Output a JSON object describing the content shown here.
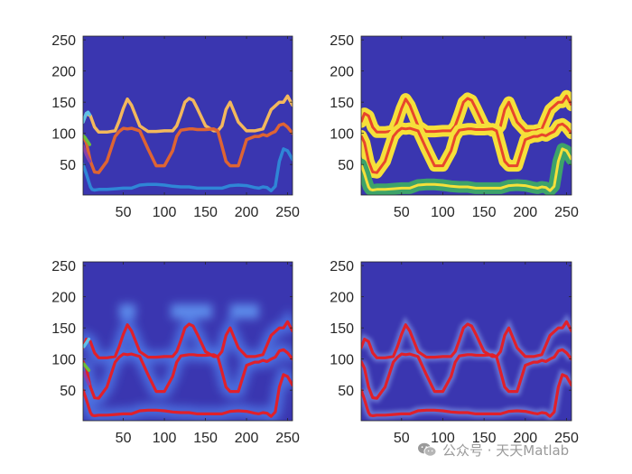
{
  "chart_data": [
    {
      "type": "heatmap",
      "panel": "top-left",
      "xlim": [
        1,
        256
      ],
      "ylim": [
        1,
        256
      ],
      "xticks": [
        50,
        100,
        150,
        200,
        250
      ],
      "yticks": [
        50,
        100,
        150,
        200,
        250
      ],
      "x_tick_labels": [
        "50",
        "100",
        "150",
        "200",
        "250"
      ],
      "y_tick_labels": [
        "50",
        "100",
        "150",
        "200",
        "250"
      ],
      "background_color": "#3a36b0",
      "series": [
        {
          "color": "#f3b85c",
          "x": [
            1,
            5,
            10,
            15,
            20,
            30,
            40,
            45,
            50,
            55,
            60,
            70,
            80,
            90,
            100,
            110,
            115,
            120,
            125,
            130,
            135,
            140,
            150,
            160,
            165,
            170,
            175,
            180,
            190,
            200,
            210,
            220,
            230,
            240,
            245,
            250,
            256
          ],
          "y": [
            118,
            132,
            128,
            110,
            102,
            102,
            104,
            120,
            140,
            155,
            145,
            112,
            103,
            103,
            104,
            104,
            112,
            130,
            150,
            156,
            153,
            140,
            112,
            104,
            104,
            112,
            138,
            150,
            118,
            104,
            104,
            107,
            138,
            150,
            150,
            160,
            145
          ]
        },
        {
          "color": "#de6433",
          "x": [
            1,
            5,
            10,
            15,
            20,
            30,
            40,
            45,
            50,
            55,
            60,
            70,
            80,
            90,
            100,
            110,
            115,
            120,
            125,
            130,
            135,
            140,
            150,
            160,
            165,
            170,
            175,
            180,
            190,
            200,
            210,
            215,
            220,
            225,
            230,
            235,
            240,
            245,
            250,
            256
          ],
          "y": [
            96,
            85,
            55,
            38,
            37,
            55,
            95,
            103,
            108,
            107,
            108,
            104,
            75,
            48,
            48,
            72,
            95,
            105,
            106,
            107,
            107,
            106,
            106,
            107,
            104,
            80,
            55,
            48,
            48,
            90,
            95,
            95,
            98,
            96,
            100,
            103,
            113,
            115,
            110,
            100
          ]
        },
        {
          "color": "#2f86d6",
          "x": [
            1,
            5,
            8,
            10,
            12,
            15,
            20,
            30,
            40,
            50,
            60,
            70,
            80,
            90,
            100,
            110,
            120,
            130,
            140,
            150,
            160,
            170,
            180,
            190,
            200,
            210,
            215,
            220,
            225,
            230,
            235,
            240,
            245,
            250,
            256
          ],
          "y": [
            50,
            35,
            22,
            14,
            10,
            9,
            10,
            10,
            11,
            12,
            12,
            17,
            18,
            18,
            17,
            15,
            14,
            14,
            12,
            12,
            12,
            12,
            16,
            17,
            16,
            13,
            12,
            14,
            13,
            8,
            15,
            55,
            75,
            72,
            58
          ]
        },
        {
          "color": "#5fc0e8",
          "x": [
            1,
            3,
            5,
            7,
            9
          ],
          "y": [
            118,
            125,
            132,
            134,
            130
          ]
        },
        {
          "color": "#6cbf3a",
          "x": [
            1,
            3,
            5,
            7,
            9
          ],
          "y": [
            96,
            94,
            90,
            86,
            82
          ]
        },
        {
          "color": "#8b3fa8",
          "x": [
            1,
            3,
            5,
            7,
            9
          ],
          "y": [
            80,
            73,
            66,
            60,
            55
          ]
        }
      ]
    },
    {
      "type": "heatmap",
      "panel": "top-right",
      "xlim": [
        1,
        256
      ],
      "ylim": [
        1,
        256
      ],
      "xticks": [
        50,
        100,
        150,
        200,
        250
      ],
      "yticks": [
        50,
        100,
        150,
        200,
        250
      ],
      "x_tick_labels": [
        "50",
        "100",
        "150",
        "200",
        "250"
      ],
      "y_tick_labels": [
        "50",
        "100",
        "150",
        "200",
        "250"
      ],
      "background_color": "#3a36b0",
      "series": [
        {
          "color": "#f5e03a",
          "x": [
            1,
            5,
            10,
            15,
            20,
            30,
            40,
            45,
            50,
            55,
            60,
            70,
            80,
            90,
            100,
            110,
            115,
            120,
            125,
            130,
            135,
            140,
            150,
            160,
            165,
            170,
            175,
            180,
            190,
            200,
            210,
            220,
            230,
            240,
            245,
            250,
            256
          ],
          "y": [
            118,
            132,
            128,
            110,
            102,
            102,
            104,
            120,
            140,
            155,
            145,
            112,
            103,
            103,
            104,
            104,
            112,
            130,
            150,
            156,
            153,
            140,
            112,
            104,
            104,
            112,
            138,
            150,
            118,
            104,
            104,
            107,
            138,
            150,
            150,
            160,
            145
          ]
        },
        {
          "color": "#f5e03a",
          "x": [
            1,
            5,
            10,
            15,
            20,
            30,
            40,
            45,
            50,
            55,
            60,
            70,
            80,
            90,
            100,
            110,
            115,
            120,
            125,
            130,
            135,
            140,
            150,
            160,
            165,
            170,
            175,
            180,
            190,
            200,
            210,
            215,
            220,
            225,
            230,
            235,
            240,
            245,
            250,
            256
          ],
          "y": [
            96,
            85,
            55,
            38,
            37,
            55,
            95,
            103,
            108,
            107,
            108,
            104,
            75,
            48,
            48,
            72,
            95,
            105,
            106,
            107,
            107,
            106,
            106,
            107,
            104,
            80,
            55,
            48,
            48,
            90,
            95,
            95,
            98,
            96,
            100,
            103,
            113,
            115,
            110,
            100
          ]
        },
        {
          "color": "#3da36a",
          "x": [
            1,
            5,
            8,
            10,
            12,
            15,
            20,
            30,
            40,
            50,
            60,
            70,
            80,
            90,
            100,
            110,
            120,
            130,
            140,
            150,
            160,
            170,
            180,
            190,
            200,
            210,
            215,
            220,
            225,
            230,
            235,
            240,
            245,
            250,
            256
          ],
          "y": [
            50,
            35,
            22,
            14,
            10,
            9,
            10,
            10,
            11,
            12,
            12,
            17,
            18,
            18,
            17,
            15,
            14,
            14,
            12,
            12,
            12,
            12,
            16,
            17,
            16,
            13,
            12,
            14,
            13,
            8,
            15,
            55,
            75,
            72,
            58
          ]
        }
      ]
    },
    {
      "type": "heatmap",
      "panel": "bottom-left",
      "xlim": [
        1,
        256
      ],
      "ylim": [
        1,
        256
      ],
      "xticks": [
        50,
        100,
        150,
        200,
        250
      ],
      "yticks": [
        50,
        100,
        150,
        200,
        250
      ],
      "x_tick_labels": [
        "50",
        "100",
        "150",
        "200",
        "250"
      ],
      "y_tick_labels": [
        "50",
        "100",
        "150",
        "200",
        "250"
      ],
      "background_color": "#3a36b0",
      "series": [
        {
          "color": "#e0202a",
          "x": [
            1,
            5,
            10,
            15,
            20,
            30,
            40,
            45,
            50,
            55,
            60,
            70,
            80,
            90,
            100,
            110,
            115,
            120,
            125,
            130,
            135,
            140,
            150,
            160,
            165,
            170,
            175,
            180,
            190,
            200,
            210,
            220,
            230,
            240,
            245,
            250,
            256
          ],
          "y": [
            118,
            132,
            128,
            110,
            102,
            102,
            104,
            120,
            140,
            155,
            145,
            112,
            103,
            103,
            104,
            104,
            112,
            130,
            150,
            156,
            153,
            140,
            112,
            104,
            104,
            112,
            138,
            150,
            118,
            104,
            104,
            107,
            138,
            150,
            150,
            160,
            145
          ]
        },
        {
          "color": "#e0202a",
          "x": [
            1,
            5,
            10,
            15,
            20,
            30,
            40,
            45,
            50,
            55,
            60,
            70,
            80,
            90,
            100,
            110,
            115,
            120,
            125,
            130,
            135,
            140,
            150,
            160,
            165,
            170,
            175,
            180,
            190,
            200,
            210,
            215,
            220,
            225,
            230,
            235,
            240,
            245,
            250,
            256
          ],
          "y": [
            96,
            85,
            55,
            38,
            37,
            55,
            95,
            103,
            108,
            107,
            108,
            104,
            75,
            48,
            48,
            72,
            95,
            105,
            106,
            107,
            107,
            106,
            106,
            107,
            104,
            80,
            55,
            48,
            48,
            90,
            95,
            95,
            98,
            96,
            100,
            103,
            113,
            115,
            110,
            100
          ]
        },
        {
          "color": "#e0202a",
          "x": [
            1,
            5,
            8,
            10,
            12,
            15,
            20,
            30,
            40,
            50,
            60,
            70,
            80,
            90,
            100,
            110,
            120,
            130,
            140,
            150,
            160,
            170,
            180,
            190,
            200,
            210,
            215,
            220,
            225,
            230,
            235,
            240,
            245,
            250,
            256
          ],
          "y": [
            50,
            35,
            22,
            14,
            10,
            9,
            10,
            10,
            11,
            12,
            12,
            17,
            18,
            18,
            17,
            15,
            14,
            14,
            12,
            12,
            12,
            12,
            16,
            17,
            16,
            13,
            12,
            14,
            13,
            8,
            15,
            55,
            75,
            72,
            58
          ]
        }
      ]
    },
    {
      "type": "heatmap",
      "panel": "bottom-right",
      "xlim": [
        1,
        256
      ],
      "ylim": [
        1,
        256
      ],
      "xticks": [
        50,
        100,
        150,
        200,
        250
      ],
      "yticks": [
        50,
        100,
        150,
        200,
        250
      ],
      "x_tick_labels": [
        "50",
        "100",
        "150",
        "200",
        "250"
      ],
      "y_tick_labels": [
        "50",
        "100",
        "150",
        "200",
        "250"
      ],
      "background_color": "#3a36b0",
      "series": [
        {
          "color": "#e0202a",
          "x": [
            1,
            5,
            10,
            15,
            20,
            30,
            40,
            45,
            50,
            55,
            60,
            70,
            80,
            90,
            100,
            110,
            115,
            120,
            125,
            130,
            135,
            140,
            150,
            160,
            165,
            170,
            175,
            180,
            190,
            200,
            210,
            220,
            230,
            240,
            245,
            250,
            256
          ],
          "y": [
            118,
            132,
            128,
            110,
            102,
            102,
            104,
            120,
            140,
            155,
            145,
            112,
            103,
            103,
            104,
            104,
            112,
            130,
            150,
            156,
            153,
            140,
            112,
            104,
            104,
            112,
            138,
            150,
            118,
            104,
            104,
            107,
            138,
            150,
            150,
            160,
            145
          ]
        },
        {
          "color": "#e0202a",
          "x": [
            1,
            5,
            10,
            15,
            20,
            30,
            40,
            45,
            50,
            55,
            60,
            70,
            80,
            90,
            100,
            110,
            115,
            120,
            125,
            130,
            135,
            140,
            150,
            160,
            165,
            170,
            175,
            180,
            190,
            200,
            210,
            215,
            220,
            225,
            230,
            235,
            240,
            245,
            250,
            256
          ],
          "y": [
            96,
            85,
            55,
            38,
            37,
            55,
            95,
            103,
            108,
            107,
            108,
            104,
            75,
            48,
            48,
            72,
            95,
            105,
            106,
            107,
            107,
            106,
            106,
            107,
            104,
            80,
            55,
            48,
            48,
            90,
            95,
            95,
            98,
            96,
            100,
            103,
            113,
            115,
            110,
            100
          ]
        },
        {
          "color": "#e0202a",
          "x": [
            1,
            5,
            8,
            10,
            12,
            15,
            20,
            30,
            40,
            50,
            60,
            70,
            80,
            90,
            100,
            110,
            120,
            130,
            140,
            150,
            160,
            170,
            180,
            190,
            200,
            210,
            215,
            220,
            225,
            230,
            235,
            240,
            245,
            250,
            256
          ],
          "y": [
            50,
            35,
            22,
            14,
            10,
            9,
            10,
            10,
            11,
            12,
            12,
            17,
            18,
            18,
            17,
            15,
            14,
            14,
            12,
            12,
            12,
            12,
            16,
            17,
            16,
            13,
            12,
            14,
            13,
            8,
            15,
            55,
            75,
            72,
            58
          ]
        }
      ]
    }
  ],
  "watermark": {
    "text": "公众号 · 天天Matlab",
    "icon": "wechat-icon",
    "color": "#9a9a9a"
  }
}
